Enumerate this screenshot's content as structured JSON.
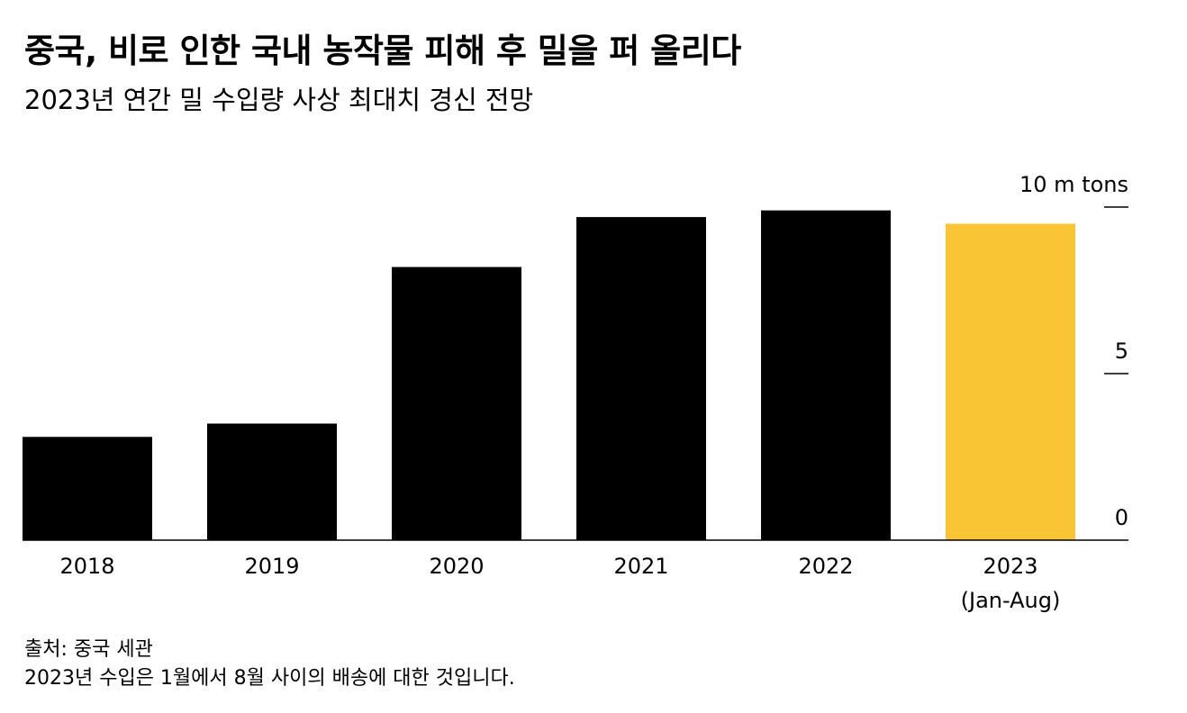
{
  "chart_data": {
    "type": "bar",
    "title": "중국, 비로 인한 국내 농작물 피해 후 밀을 퍼 올리다",
    "subtitle": "2023년 연간 밀 수입량 사상 최대치 경신 전망",
    "categories": [
      [
        "2018"
      ],
      [
        "2019"
      ],
      [
        "2020"
      ],
      [
        "2021"
      ],
      [
        "2022"
      ],
      [
        "2023",
        "(Jan-Aug)"
      ]
    ],
    "values": [
      3.1,
      3.5,
      8.2,
      9.7,
      9.9,
      9.5
    ],
    "highlight_index": 5,
    "colors": {
      "bar": "#000000",
      "highlight": "#F9C535"
    },
    "ylim": [
      0,
      10
    ],
    "yticks": [
      0,
      5,
      10
    ],
    "ytick_labels": [
      "0",
      "5",
      "10 m tons"
    ],
    "yaxis_position": "right",
    "xlabel": "",
    "ylabel": ""
  },
  "footer": {
    "source": "출처: 중국 세관",
    "note": "2023년 수입은 1월에서 8월 사이의 배송에 대한 것입니다."
  }
}
